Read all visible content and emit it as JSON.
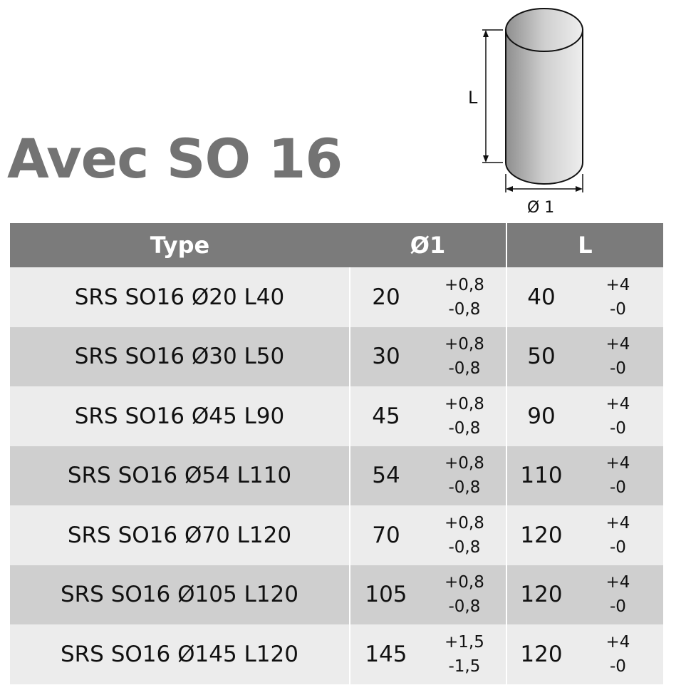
{
  "title": "Avec SO 16",
  "drawing": {
    "length_label": "L",
    "diameter_label": "Ø 1"
  },
  "table": {
    "headers": [
      "Type",
      "Ø1",
      "L"
    ],
    "rows": [
      {
        "type": "SRS SO16 Ø20 L40",
        "d": "20",
        "d_plus": "+0,8",
        "d_minus": "-0,8",
        "l": "40",
        "l_plus": "+4",
        "l_minus": "-0"
      },
      {
        "type": "SRS SO16 Ø30 L50",
        "d": "30",
        "d_plus": "+0,8",
        "d_minus": "-0,8",
        "l": "50",
        "l_plus": "+4",
        "l_minus": "-0"
      },
      {
        "type": "SRS SO16 Ø45 L90",
        "d": "45",
        "d_plus": "+0,8",
        "d_minus": "-0,8",
        "l": "90",
        "l_plus": "+4",
        "l_minus": "-0"
      },
      {
        "type": "SRS SO16 Ø54 L110",
        "d": "54",
        "d_plus": "+0,8",
        "d_minus": "-0,8",
        "l": "110",
        "l_plus": "+4",
        "l_minus": "-0"
      },
      {
        "type": "SRS SO16 Ø70 L120",
        "d": "70",
        "d_plus": "+0,8",
        "d_minus": "-0,8",
        "l": "120",
        "l_plus": "+4",
        "l_minus": "-0"
      },
      {
        "type": "SRS SO16 Ø105 L120",
        "d": "105",
        "d_plus": "+0,8",
        "d_minus": "-0,8",
        "l": "120",
        "l_plus": "+4",
        "l_minus": "-0"
      },
      {
        "type": "SRS SO16 Ø145 L120",
        "d": "145",
        "d_plus": "+1,5",
        "d_minus": "-1,5",
        "l": "120",
        "l_plus": "+4",
        "l_minus": "-0"
      }
    ]
  },
  "colors": {
    "header_bg": "#7b7b7b",
    "row_light": "#ececec",
    "row_dark": "#cfcfcf",
    "title": "#737373"
  }
}
